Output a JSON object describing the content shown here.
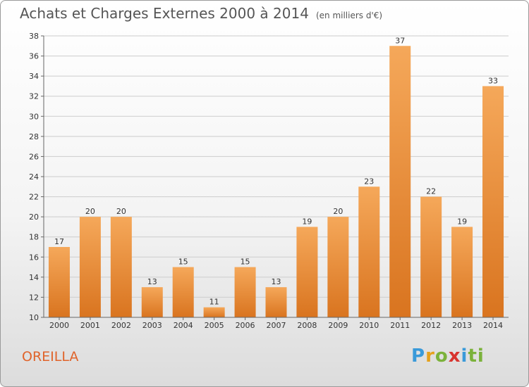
{
  "title": "Achats et Charges Externes 2000 à 2014",
  "unit_note": "(en milliers d'€)",
  "commune": "OREILLA",
  "logo": [
    "P",
    "r",
    "o",
    "x",
    "i",
    "ti"
  ],
  "colors": {
    "bar_top": "#f5a85a",
    "bar_bottom": "#d9741f",
    "grid": "#cccccc",
    "commune": "#e0632a"
  },
  "chart_data": {
    "type": "bar",
    "categories": [
      "2000",
      "2001",
      "2002",
      "2003",
      "2004",
      "2005",
      "2006",
      "2007",
      "2008",
      "2009",
      "2010",
      "2011",
      "2012",
      "2013",
      "2014"
    ],
    "values": [
      17,
      20,
      20,
      13,
      15,
      11,
      15,
      13,
      19,
      20,
      23,
      37,
      22,
      19,
      33
    ],
    "ylim": [
      10,
      38
    ],
    "yticks": [
      10,
      12,
      14,
      16,
      18,
      20,
      22,
      24,
      26,
      28,
      30,
      32,
      34,
      36,
      38
    ],
    "grid": true,
    "xlabel": "",
    "ylabel": ""
  }
}
